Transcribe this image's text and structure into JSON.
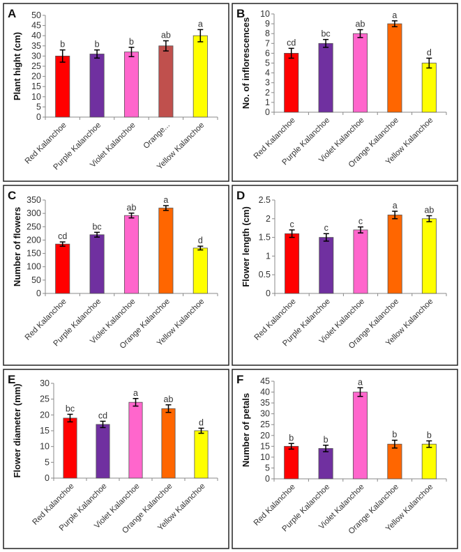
{
  "chart_data": [
    {
      "type": "bar",
      "panel": "A",
      "ylabel": "Plant hight (cm)",
      "ylim": [
        0,
        50
      ],
      "ystep": 5,
      "categories": [
        "Red Kalanchoe",
        "Purple Kalanchoe",
        "Violet Kalanchoe",
        "Orange...",
        "Yellow Kalanchoe"
      ],
      "values": [
        30,
        31,
        32,
        35,
        40
      ],
      "errors": [
        3,
        2,
        2.3,
        2.5,
        3
      ],
      "letters": [
        "b",
        "b",
        "b",
        "ab",
        "a"
      ],
      "colors": [
        "#FF0000",
        "#7030A0",
        "#FF66CC",
        "#C0504D",
        "#FFFF00"
      ]
    },
    {
      "type": "bar",
      "panel": "B",
      "ylabel": "No. of inflorescences",
      "ylim": [
        0,
        10
      ],
      "ystep": 1,
      "categories": [
        "Red Kalanchoe",
        "Purple Kalanchoe",
        "Violet Kalanchoe",
        "Orange Kalanchoe",
        "Yellow Kalanchoe"
      ],
      "values": [
        6,
        7,
        8,
        9,
        5
      ],
      "errors": [
        0.5,
        0.4,
        0.4,
        0.3,
        0.5
      ],
      "letters": [
        "cd",
        "bc",
        "ab",
        "a",
        "d"
      ],
      "colors": [
        "#FF0000",
        "#7030A0",
        "#FF66CC",
        "#FF6600",
        "#FFFF00"
      ]
    },
    {
      "type": "bar",
      "panel": "C",
      "ylabel": "Number of flowers",
      "ylim": [
        0,
        350
      ],
      "ystep": 50,
      "categories": [
        "Red Kalanchoe",
        "Purple Kalanchoe",
        "Violet Kalanchoe",
        "Orange Kalanchoe",
        "Yellow Kalanchoe"
      ],
      "values": [
        185,
        220,
        292,
        320,
        170
      ],
      "errors": [
        8,
        9,
        9,
        9,
        7
      ],
      "letters": [
        "cd",
        "bc",
        "ab",
        "a",
        "d"
      ],
      "colors": [
        "#FF0000",
        "#7030A0",
        "#FF66CC",
        "#FF6600",
        "#FFFF00"
      ]
    },
    {
      "type": "bar",
      "panel": "D",
      "ylabel": "Flower length (cm)",
      "ylim": [
        0,
        2.5
      ],
      "ystep": 0.5,
      "categories": [
        "Red Kalanchoe",
        "Purple Kalanchoe",
        "Violet Kalanchoe",
        "Orange Kalanchoe",
        "Yellow Kalanchoe"
      ],
      "values": [
        1.6,
        1.5,
        1.7,
        2.1,
        2.0
      ],
      "errors": [
        0.1,
        0.1,
        0.08,
        0.1,
        0.08
      ],
      "letters": [
        "c",
        "c",
        "c",
        "a",
        "ab"
      ],
      "colors": [
        "#FF0000",
        "#7030A0",
        "#FF66CC",
        "#FF6600",
        "#FFFF00"
      ]
    },
    {
      "type": "bar",
      "panel": "E",
      "ylabel": "Flower diameter (mm)",
      "ylim": [
        0,
        30
      ],
      "ystep": 5,
      "categories": [
        "Red Kalanchoe",
        "Purple Kalanchoe",
        "Violet Kalanchoe",
        "Orange Kalanchoe",
        "Yellow Kalanchoe"
      ],
      "values": [
        19,
        17,
        24,
        22,
        15
      ],
      "errors": [
        1.2,
        1,
        1.2,
        1.2,
        0.8
      ],
      "letters": [
        "bc",
        "cd",
        "a",
        "ab",
        "d"
      ],
      "colors": [
        "#FF0000",
        "#7030A0",
        "#FF66CC",
        "#FF6600",
        "#FFFF00"
      ]
    },
    {
      "type": "bar",
      "panel": "F",
      "ylabel": "Number of petals",
      "ylim": [
        0,
        45
      ],
      "ystep": 5,
      "categories": [
        "Red Kalanchoe",
        "Purple Kalanchoe",
        "Violet Kalanchoe",
        "Orange Kalanchoe",
        "Yellow Kalanchoe"
      ],
      "values": [
        15,
        14,
        40,
        16,
        16
      ],
      "errors": [
        1.3,
        1.5,
        2,
        1.8,
        1.5
      ],
      "letters": [
        "b",
        "b",
        "a",
        "b",
        "b"
      ],
      "colors": [
        "#FF0000",
        "#7030A0",
        "#FF66CC",
        "#FF6600",
        "#FFFF00"
      ]
    }
  ]
}
